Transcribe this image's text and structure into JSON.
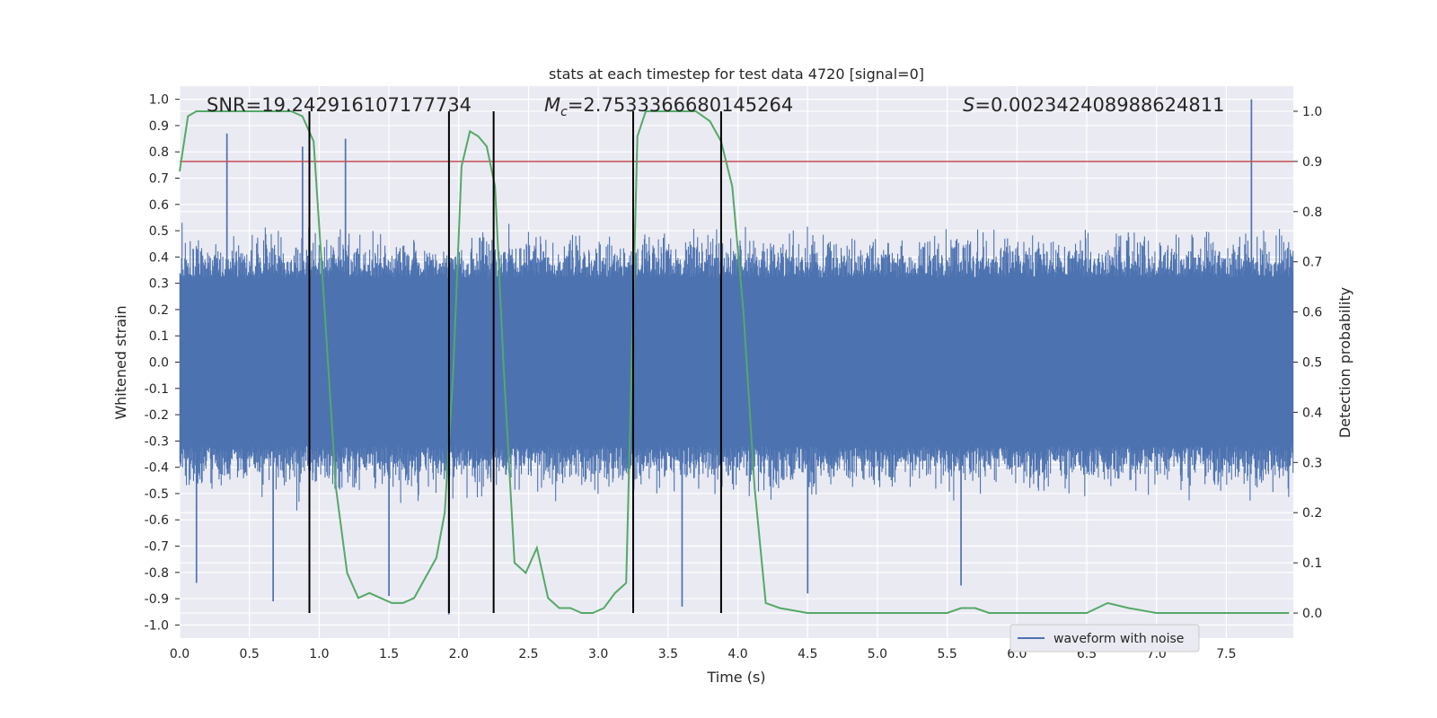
{
  "chart_data": {
    "type": "line",
    "title": "stats at each timestep for test data 4720 [signal=0]",
    "xlabel": "Time (s)",
    "ylabel_left": "Whitened strain",
    "ylabel_right": "Detection probability",
    "xlim": [
      0.0,
      7.98
    ],
    "ylim_left": [
      -1.05,
      1.05
    ],
    "ylim_right": [
      -0.05,
      1.05
    ],
    "xticks": [
      "0.0",
      "0.5",
      "1.0",
      "1.5",
      "2.0",
      "2.5",
      "3.0",
      "3.5",
      "4.0",
      "4.5",
      "5.0",
      "5.5",
      "6.0",
      "6.5",
      "7.0",
      "7.5"
    ],
    "yticks_left": [
      "1.0",
      "0.9",
      "0.8",
      "0.7",
      "0.6",
      "0.5",
      "0.4",
      "0.3",
      "0.2",
      "0.1",
      "0.0",
      "-0.1",
      "-0.2",
      "-0.3",
      "-0.4",
      "-0.5",
      "-0.6",
      "-0.7",
      "-0.8",
      "-0.9",
      "-1.0"
    ],
    "yticks_right": [
      "1.0",
      "0.9",
      "0.8",
      "0.7",
      "0.6",
      "0.5",
      "0.4",
      "0.3",
      "0.2",
      "0.1",
      "0.0"
    ],
    "annotations": {
      "snr": "SNR=19.242916107177734",
      "mc_symbol": "M",
      "mc_subscript": "c",
      "mc_value": "=2.7533366680145264",
      "s_symbol": "S",
      "s_value": "=0.002342408988624811"
    },
    "legend": {
      "label": "waveform with noise",
      "position": "lower-right"
    },
    "threshold": 0.9,
    "vertical_lines_x": [
      0.93,
      1.93,
      2.25,
      3.25,
      3.88
    ],
    "series": [
      {
        "name": "waveform with noise",
        "axis": "left",
        "color": "#4c72b0",
        "description_style": "noise",
        "core_band": 0.32,
        "typical_peak": 0.6,
        "notable_peaks_x": [
          0.34,
          0.88,
          1.19,
          7.68
        ],
        "notable_peaks_y": [
          0.87,
          0.82,
          0.85,
          1.0
        ],
        "notable_troughs_x": [
          0.12,
          0.67,
          1.5,
          1.93,
          3.6,
          4.5,
          5.6
        ],
        "notable_troughs_y": [
          -0.84,
          -0.91,
          -0.89,
          -0.96,
          -0.93,
          -0.88,
          -0.85
        ]
      },
      {
        "name": "detection probability",
        "axis": "right",
        "color": "#55a868",
        "x": [
          0.0,
          0.06,
          0.12,
          0.2,
          0.4,
          0.6,
          0.8,
          0.88,
          0.96,
          1.04,
          1.12,
          1.2,
          1.28,
          1.36,
          1.44,
          1.52,
          1.6,
          1.68,
          1.76,
          1.84,
          1.9,
          1.96,
          2.02,
          2.08,
          2.14,
          2.2,
          2.26,
          2.32,
          2.4,
          2.48,
          2.56,
          2.64,
          2.72,
          2.8,
          2.88,
          2.96,
          3.04,
          3.12,
          3.2,
          3.28,
          3.34,
          3.4,
          3.5,
          3.6,
          3.7,
          3.8,
          3.88,
          3.96,
          4.04,
          4.12,
          4.2,
          4.3,
          4.5,
          5.0,
          5.5,
          5.6,
          5.7,
          5.8,
          5.9,
          6.0,
          6.2,
          6.5,
          6.65,
          6.8,
          7.0,
          7.3,
          7.5,
          7.7,
          7.95
        ],
        "y": [
          0.88,
          0.99,
          1.0,
          1.0,
          1.0,
          1.0,
          1.0,
          0.99,
          0.94,
          0.6,
          0.25,
          0.08,
          0.03,
          0.04,
          0.03,
          0.02,
          0.02,
          0.03,
          0.07,
          0.11,
          0.2,
          0.48,
          0.89,
          0.96,
          0.95,
          0.93,
          0.85,
          0.5,
          0.1,
          0.08,
          0.13,
          0.03,
          0.01,
          0.01,
          0.0,
          0.0,
          0.01,
          0.04,
          0.06,
          0.95,
          1.0,
          1.0,
          1.0,
          1.0,
          1.0,
          0.98,
          0.94,
          0.85,
          0.6,
          0.25,
          0.02,
          0.01,
          0.0,
          0.0,
          0.0,
          0.01,
          0.01,
          0.0,
          0.0,
          0.0,
          0.0,
          0.0,
          0.02,
          0.01,
          0.0,
          0.0,
          0.0,
          0.0,
          0.0
        ]
      }
    ]
  }
}
